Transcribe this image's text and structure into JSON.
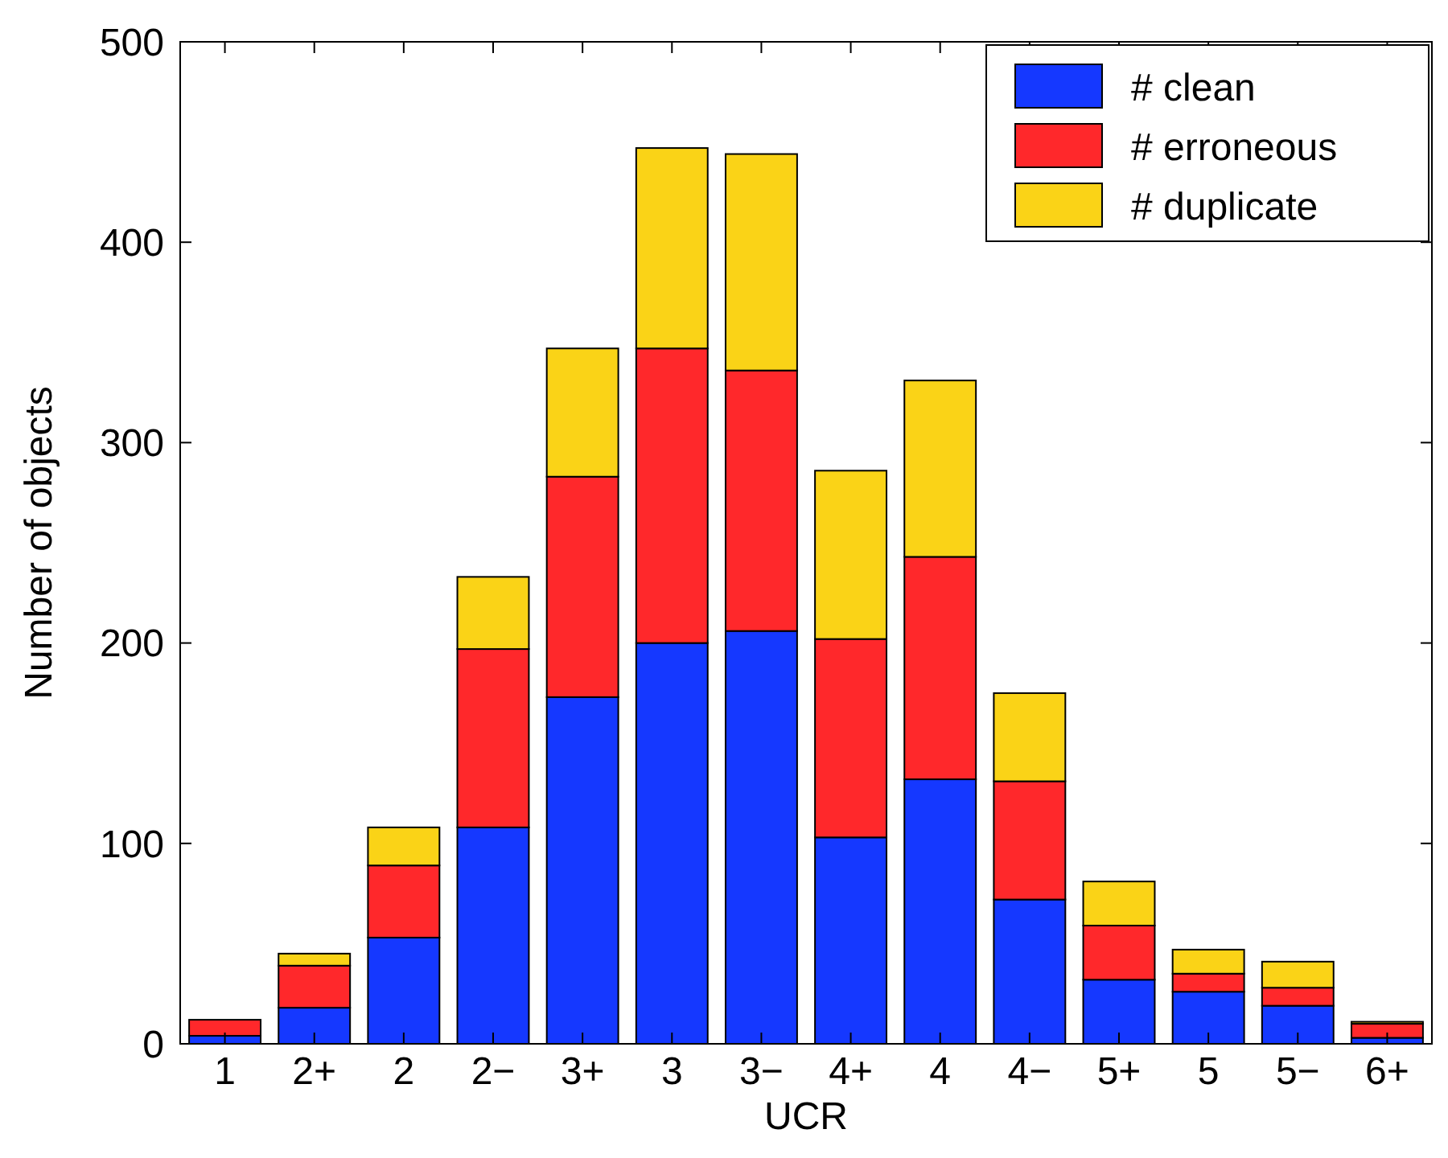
{
  "chart_data": {
    "type": "bar",
    "stacked": true,
    "xlabel": "UCR",
    "ylabel": "Number of objects",
    "categories": [
      "1",
      "2+",
      "2",
      "2−",
      "3+",
      "3",
      "3−",
      "4+",
      "4",
      "4−",
      "5+",
      "5",
      "5−",
      "6+"
    ],
    "series": [
      {
        "name": "# clean",
        "color": "#1538ff",
        "values": [
          4,
          18,
          53,
          108,
          173,
          200,
          206,
          103,
          132,
          72,
          32,
          26,
          19,
          3
        ]
      },
      {
        "name": "# erroneous",
        "color": "#ff282b",
        "values": [
          8,
          21,
          36,
          89,
          110,
          147,
          130,
          99,
          111,
          59,
          27,
          9,
          9,
          7
        ]
      },
      {
        "name": "# duplicate",
        "color": "#fad317",
        "values": [
          0,
          6,
          19,
          36,
          64,
          100,
          108,
          84,
          88,
          44,
          22,
          12,
          13,
          1
        ]
      }
    ],
    "ylim": [
      0,
      500
    ],
    "yticks": [
      0,
      100,
      200,
      300,
      400,
      500
    ],
    "grid": false,
    "legend": "top right"
  }
}
